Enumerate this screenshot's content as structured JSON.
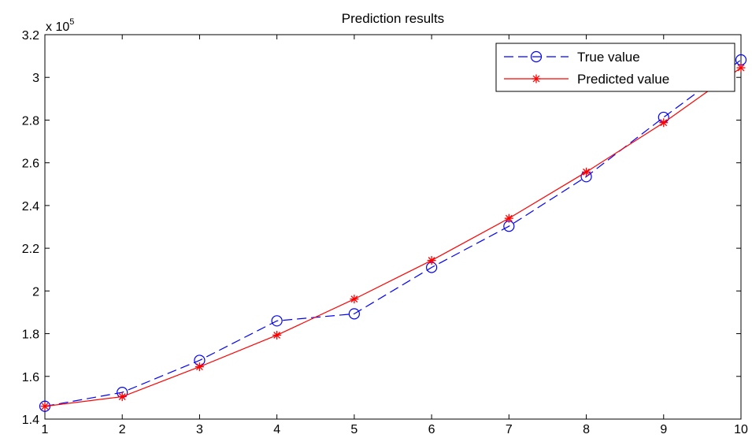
{
  "chart_data": {
    "type": "line",
    "title": "Prediction results",
    "xlabel": "",
    "ylabel": "",
    "y_multiplier_label": "x 10",
    "y_multiplier_exponent": "5",
    "x": [
      1,
      2,
      3,
      4,
      5,
      6,
      7,
      8,
      9,
      10
    ],
    "x_ticks": [
      "1",
      "2",
      "3",
      "4",
      "5",
      "6",
      "7",
      "8",
      "9",
      "10"
    ],
    "y_ticks": [
      "1.4",
      "1.6",
      "1.8",
      "2",
      "2.2",
      "2.4",
      "2.6",
      "2.8",
      "3",
      "3.2"
    ],
    "y_tick_values": [
      1.4,
      1.6,
      1.8,
      2.0,
      2.2,
      2.4,
      2.6,
      2.8,
      3.0,
      3.2
    ],
    "xlim": [
      1,
      10
    ],
    "ylim": [
      1.4,
      3.2
    ],
    "grid": false,
    "legend_position": "top-right",
    "series": [
      {
        "name": "True value",
        "color": "#0000ff",
        "line_style": "dashed",
        "marker": "circle",
        "values": [
          1.46,
          1.525,
          1.675,
          1.86,
          1.893,
          2.11,
          2.303,
          2.535,
          2.813,
          3.082
        ]
      },
      {
        "name": "Predicted value",
        "color": "#ff0000",
        "line_style": "solid",
        "marker": "asterisk",
        "values": [
          1.46,
          1.505,
          1.645,
          1.793,
          1.962,
          2.143,
          2.34,
          2.557,
          2.788,
          3.045
        ]
      }
    ]
  }
}
